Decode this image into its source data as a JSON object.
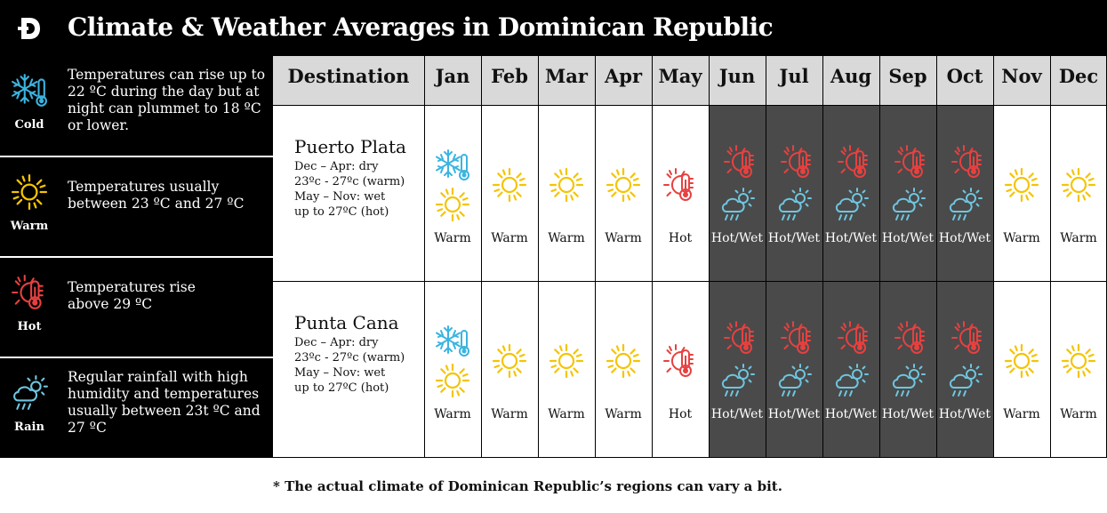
{
  "title": "Climate & Weather Averages in Dominican Republic",
  "logo_icon": "dominican-d-logo",
  "colors": {
    "cold": "#3bb4e0",
    "warm": "#f5c400",
    "hot": "#e84040",
    "rain": "#6ec6e0",
    "wet_cell": "#4a4a4a",
    "header": "#d9d9d9"
  },
  "legend": [
    {
      "name": "Cold",
      "icon": "cold-icon",
      "desc_lines": [
        "Temperatures can rise up to",
        "22 ºC during the day but at",
        "night can plummet to 18 ºC",
        "or lower."
      ]
    },
    {
      "name": "Warm",
      "icon": "sun-icon",
      "desc_lines": [
        "Temperatures usually",
        "between 23 ºC and 27 ºC"
      ]
    },
    {
      "name": "Hot",
      "icon": "hot-icon",
      "desc_lines": [
        "Temperatures rise",
        "above 29 ºC"
      ]
    },
    {
      "name": "Rain",
      "icon": "rain-icon",
      "desc_lines": [
        "Regular rainfall with high",
        "humidity and temperatures",
        "usually between 23t ºC and",
        "27 ºC"
      ]
    }
  ],
  "table": {
    "destination_header": "Destination",
    "months": [
      "Jan",
      "Feb",
      "Mar",
      "Apr",
      "May",
      "Jun",
      "Jul",
      "Aug",
      "Sep",
      "Oct",
      "Nov",
      "Dec"
    ],
    "rows": [
      {
        "destination": "Puerto Plata",
        "details": [
          "Dec – Apr: dry",
          "23ºc - 27ºc (warm)",
          "May – Nov: wet",
          "up to 27ºC (hot)"
        ],
        "cells": [
          {
            "icons": [
              "cold",
              "warm"
            ],
            "label": "Warm"
          },
          {
            "icons": [
              "warm"
            ],
            "label": "Warm"
          },
          {
            "icons": [
              "warm"
            ],
            "label": "Warm"
          },
          {
            "icons": [
              "warm"
            ],
            "label": "Warm"
          },
          {
            "icons": [
              "hot"
            ],
            "label": "Hot"
          },
          {
            "icons": [
              "hot",
              "rain"
            ],
            "label": "Hot/Wet",
            "dark": true
          },
          {
            "icons": [
              "hot",
              "rain"
            ],
            "label": "Hot/Wet",
            "dark": true
          },
          {
            "icons": [
              "hot",
              "rain"
            ],
            "label": "Hot/Wet",
            "dark": true
          },
          {
            "icons": [
              "hot",
              "rain"
            ],
            "label": "Hot/Wet",
            "dark": true
          },
          {
            "icons": [
              "hot",
              "rain"
            ],
            "label": "Hot/Wet",
            "dark": true
          },
          {
            "icons": [
              "warm"
            ],
            "label": "Warm"
          },
          {
            "icons": [
              "warm"
            ],
            "label": "Warm"
          }
        ]
      },
      {
        "destination": "Punta Cana",
        "details": [
          "Dec – Apr: dry",
          "23ºc - 27ºc (warm)",
          "May – Nov: wet",
          "up to 27ºC (hot)"
        ],
        "cells": [
          {
            "icons": [
              "cold",
              "warm"
            ],
            "label": "Warm"
          },
          {
            "icons": [
              "warm"
            ],
            "label": "Warm"
          },
          {
            "icons": [
              "warm"
            ],
            "label": "Warm"
          },
          {
            "icons": [
              "warm"
            ],
            "label": "Warm"
          },
          {
            "icons": [
              "hot"
            ],
            "label": "Hot"
          },
          {
            "icons": [
              "hot",
              "rain"
            ],
            "label": "Hot/Wet",
            "dark": true
          },
          {
            "icons": [
              "hot",
              "rain"
            ],
            "label": "Hot/Wet",
            "dark": true
          },
          {
            "icons": [
              "hot",
              "rain"
            ],
            "label": "Hot/Wet",
            "dark": true
          },
          {
            "icons": [
              "hot",
              "rain"
            ],
            "label": "Hot/Wet",
            "dark": true
          },
          {
            "icons": [
              "hot",
              "rain"
            ],
            "label": "Hot/Wet",
            "dark": true
          },
          {
            "icons": [
              "warm"
            ],
            "label": "Warm"
          },
          {
            "icons": [
              "warm"
            ],
            "label": "Warm"
          }
        ]
      }
    ]
  },
  "footnote": "* The actual climate of Dominican Republic’s regions can vary a bit."
}
